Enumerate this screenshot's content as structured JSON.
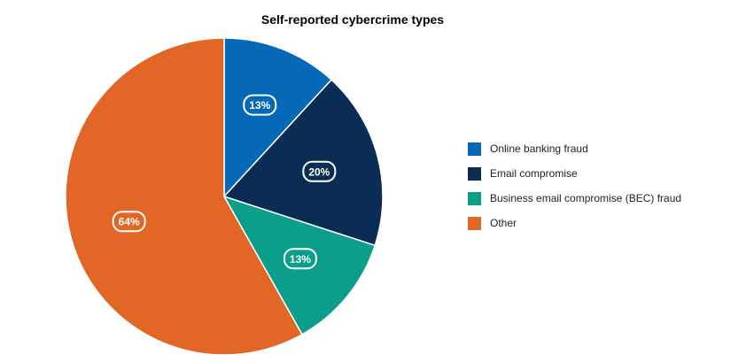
{
  "chart_data": {
    "type": "pie",
    "title": "Self-reported cybercrime types",
    "categories": [
      "Online banking fraud",
      "Email compromise",
      "Business email compromise (BEC) fraud",
      "Other"
    ],
    "values": [
      13,
      20,
      13,
      64
    ],
    "value_labels": [
      "13%",
      "20%",
      "13%",
      "64%"
    ],
    "colors": [
      "#0569b7",
      "#0b2d55",
      "#0b9e8a",
      "#e26726"
    ],
    "start_angle_deg": 0,
    "direction": "clockwise",
    "legend_position": "right"
  }
}
